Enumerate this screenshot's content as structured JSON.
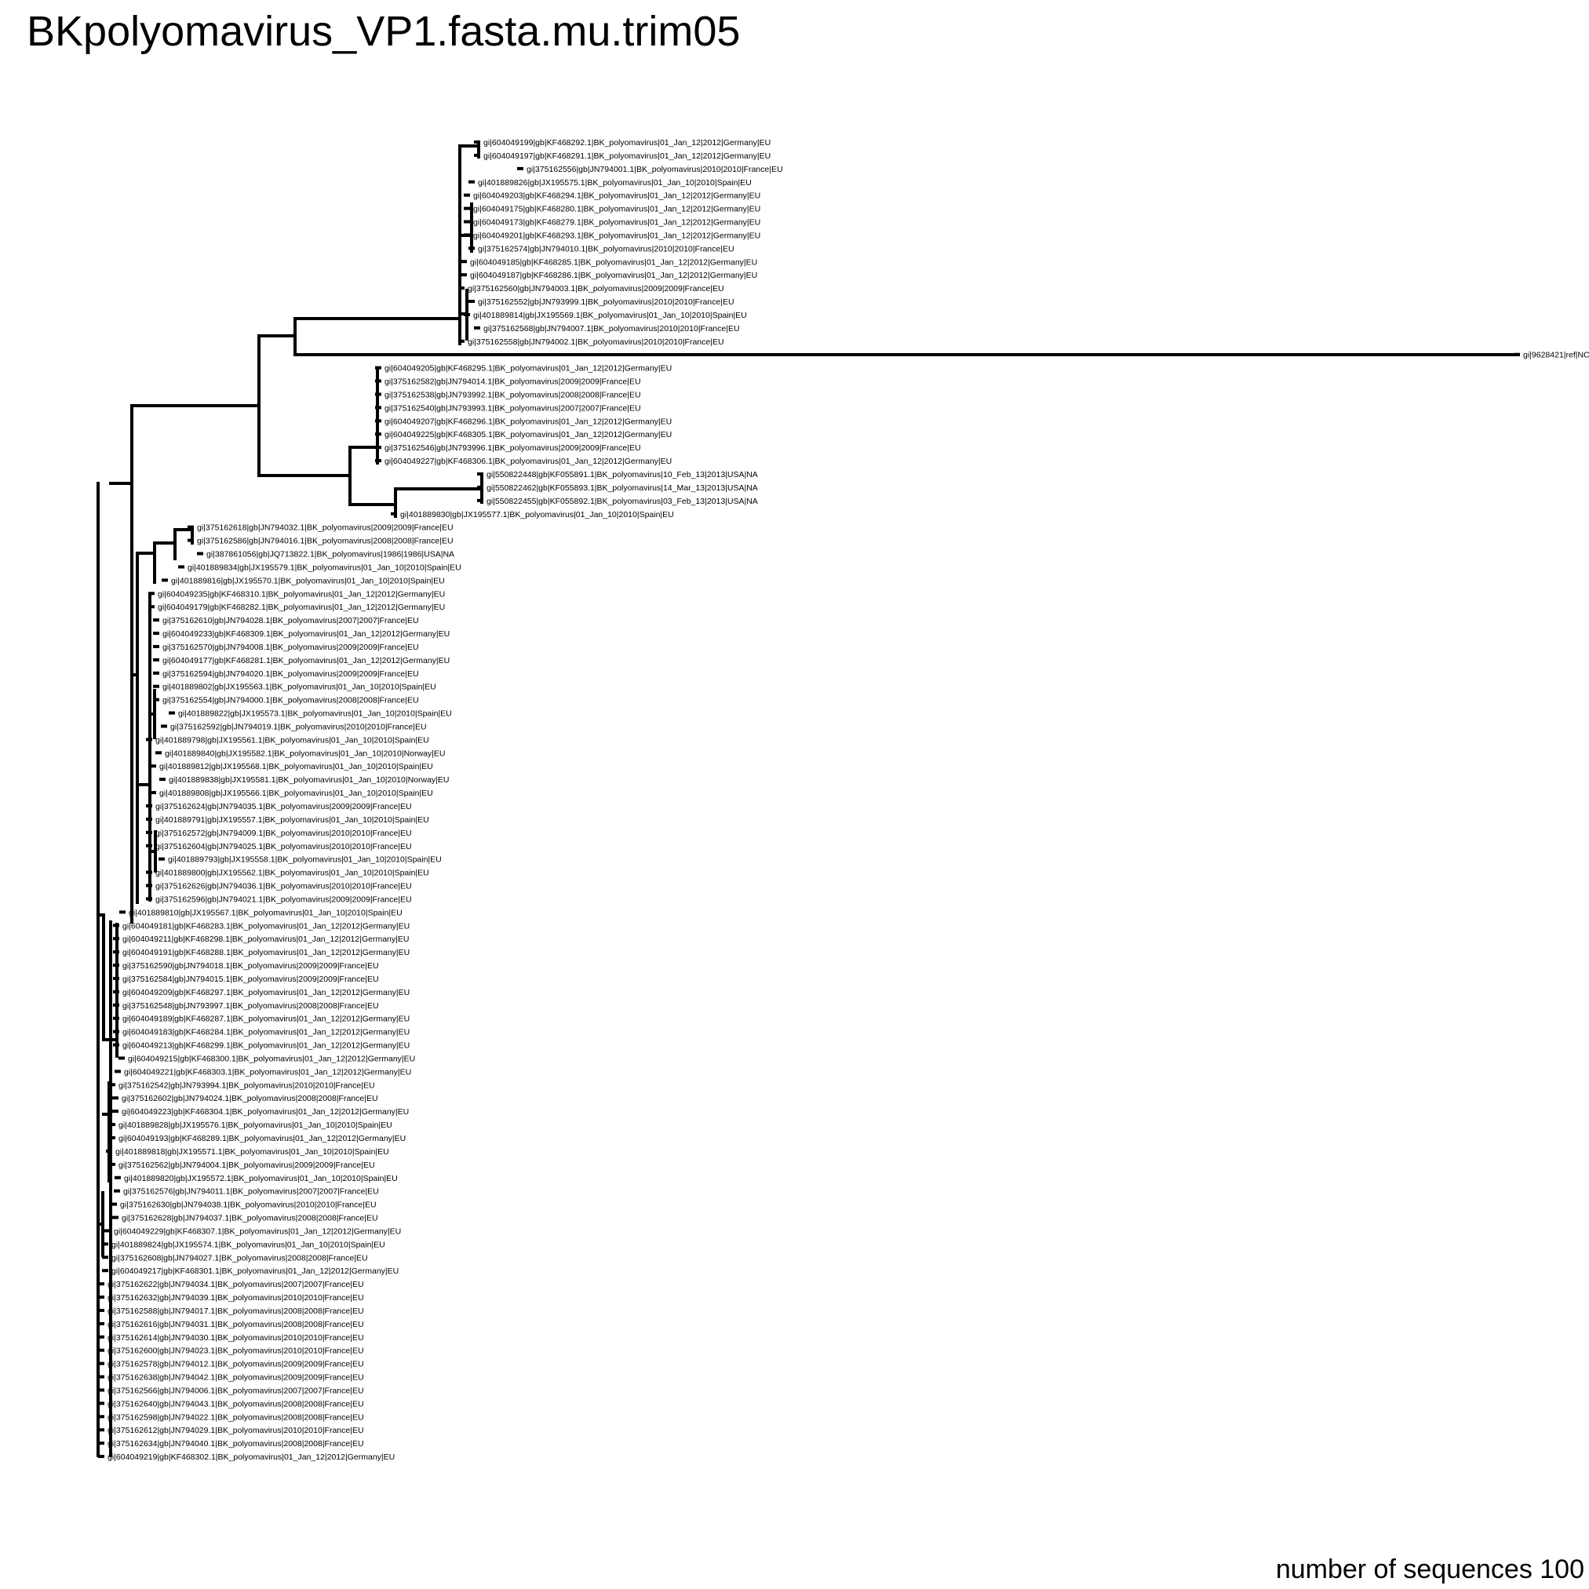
{
  "title": "BKpolyomavirus_VP1.fasta.mu.trim05",
  "footer": "number of sequences 100",
  "tips": [
    "gi|604049199|gb|KF468292.1|BK_polyomavirus|01_Jan_12|2012|Germany|EU",
    "gi|604049197|gb|KF468291.1|BK_polyomavirus|01_Jan_12|2012|Germany|EU",
    "gi|375162556|gb|JN794001.1|BK_polyomavirus|2010|2010|France|EU",
    "gi|401889826|gb|JX195575.1|BK_polyomavirus|01_Jan_10|2010|Spain|EU",
    "gi|604049203|gb|KF468294.1|BK_polyomavirus|01_Jan_12|2012|Germany|EU",
    "gi|604049175|gb|KF468280.1|BK_polyomavirus|01_Jan_12|2012|Germany|EU",
    "gi|604049173|gb|KF468279.1|BK_polyomavirus|01_Jan_12|2012|Germany|EU",
    "gi|604049201|gb|KF468293.1|BK_polyomavirus|01_Jan_12|2012|Germany|EU",
    "gi|375162574|gb|JN794010.1|BK_polyomavirus|2010|2010|France|EU",
    "gi|604049185|gb|KF468285.1|BK_polyomavirus|01_Jan_12|2012|Germany|EU",
    "gi|604049187|gb|KF468286.1|BK_polyomavirus|01_Jan_12|2012|Germany|EU",
    "gi|375162560|gb|JN794003.1|BK_polyomavirus|2009|2009|France|EU",
    "gi|375162552|gb|JN793999.1|BK_polyomavirus|2010|2010|France|EU",
    "gi|401889814|gb|JX195569.1|BK_polyomavirus|01_Jan_10|2010|Spain|EU",
    "gi|375162568|gb|JN794007.1|BK_polyomavirus|2010|2010|France|EU",
    "gi|375162558|gb|JN794002.1|BK_polyomavirus|2010|2010|France|EU",
    "gi|9628421|ref|NC",
    "gi|604049205|gb|KF468295.1|BK_polyomavirus|01_Jan_12|2012|Germany|EU",
    "gi|375162582|gb|JN794014.1|BK_polyomavirus|2009|2009|France|EU",
    "gi|375162538|gb|JN793992.1|BK_polyomavirus|2008|2008|France|EU",
    "gi|375162540|gb|JN793993.1|BK_polyomavirus|2007|2007|France|EU",
    "gi|604049207|gb|KF468296.1|BK_polyomavirus|01_Jan_12|2012|Germany|EU",
    "gi|604049225|gb|KF468305.1|BK_polyomavirus|01_Jan_12|2012|Germany|EU",
    "gi|375162546|gb|JN793996.1|BK_polyomavirus|2009|2009|France|EU",
    "gi|604049227|gb|KF468306.1|BK_polyomavirus|01_Jan_12|2012|Germany|EU",
    "gi|550822448|gb|KF055891.1|BK_polyomavirus|10_Feb_13|2013|USA|NA",
    "gi|550822462|gb|KF055893.1|BK_polyomavirus|14_Mar_13|2013|USA|NA",
    "gi|550822455|gb|KF055892.1|BK_polyomavirus|03_Feb_13|2013|USA|NA",
    "gi|401889830|gb|JX195577.1|BK_polyomavirus|01_Jan_10|2010|Spain|EU",
    "gi|375162618|gb|JN794032.1|BK_polyomavirus|2009|2009|France|EU",
    "gi|375162586|gb|JN794016.1|BK_polyomavirus|2008|2008|France|EU",
    "gi|387861056|gb|JQ713822.1|BK_polyomavirus|1986|1986|USA|NA",
    "gi|401889834|gb|JX195579.1|BK_polyomavirus|01_Jan_10|2010|Spain|EU",
    "gi|401889816|gb|JX195570.1|BK_polyomavirus|01_Jan_10|2010|Spain|EU",
    "gi|604049235|gb|KF468310.1|BK_polyomavirus|01_Jan_12|2012|Germany|EU",
    "gi|604049179|gb|KF468282.1|BK_polyomavirus|01_Jan_12|2012|Germany|EU",
    "gi|375162610|gb|JN794028.1|BK_polyomavirus|2007|2007|France|EU",
    "gi|604049233|gb|KF468309.1|BK_polyomavirus|01_Jan_12|2012|Germany|EU",
    "gi|375162570|gb|JN794008.1|BK_polyomavirus|2009|2009|France|EU",
    "gi|604049177|gb|KF468281.1|BK_polyomavirus|01_Jan_12|2012|Germany|EU",
    "gi|375162594|gb|JN794020.1|BK_polyomavirus|2009|2009|France|EU",
    "gi|401889802|gb|JX195563.1|BK_polyomavirus|01_Jan_10|2010|Spain|EU",
    "gi|375162554|gb|JN794000.1|BK_polyomavirus|2008|2008|France|EU",
    "gi|401889822|gb|JX195573.1|BK_polyomavirus|01_Jan_10|2010|Spain|EU",
    "gi|375162592|gb|JN794019.1|BK_polyomavirus|2010|2010|France|EU",
    "gi|401889798|gb|JX195561.1|BK_polyomavirus|01_Jan_10|2010|Spain|EU",
    "gi|401889840|gb|JX195582.1|BK_polyomavirus|01_Jan_10|2010|Norway|EU",
    "gi|401889812|gb|JX195568.1|BK_polyomavirus|01_Jan_10|2010|Spain|EU",
    "gi|401889838|gb|JX195581.1|BK_polyomavirus|01_Jan_10|2010|Norway|EU",
    "gi|401889808|gb|JX195566.1|BK_polyomavirus|01_Jan_10|2010|Spain|EU",
    "gi|375162624|gb|JN794035.1|BK_polyomavirus|2009|2009|France|EU",
    "gi|401889791|gb|JX195557.1|BK_polyomavirus|01_Jan_10|2010|Spain|EU",
    "gi|375162572|gb|JN794009.1|BK_polyomavirus|2010|2010|France|EU",
    "gi|375162604|gb|JN794025.1|BK_polyomavirus|2010|2010|France|EU",
    "gi|401889793|gb|JX195558.1|BK_polyomavirus|01_Jan_10|2010|Spain|EU",
    "gi|401889800|gb|JX195562.1|BK_polyomavirus|01_Jan_10|2010|Spain|EU",
    "gi|375162626|gb|JN794036.1|BK_polyomavirus|2010|2010|France|EU",
    "gi|375162596|gb|JN794021.1|BK_polyomavirus|2009|2009|France|EU",
    "gi|401889810|gb|JX195567.1|BK_polyomavirus|01_Jan_10|2010|Spain|EU",
    "gi|604049181|gb|KF468283.1|BK_polyomavirus|01_Jan_12|2012|Germany|EU",
    "gi|604049211|gb|KF468298.1|BK_polyomavirus|01_Jan_12|2012|Germany|EU",
    "gi|604049191|gb|KF468288.1|BK_polyomavirus|01_Jan_12|2012|Germany|EU",
    "gi|375162590|gb|JN794018.1|BK_polyomavirus|2009|2009|France|EU",
    "gi|375162584|gb|JN794015.1|BK_polyomavirus|2009|2009|France|EU",
    "gi|604049209|gb|KF468297.1|BK_polyomavirus|01_Jan_12|2012|Germany|EU",
    "gi|375162548|gb|JN793997.1|BK_polyomavirus|2008|2008|France|EU",
    "gi|604049189|gb|KF468287.1|BK_polyomavirus|01_Jan_12|2012|Germany|EU",
    "gi|604049183|gb|KF468284.1|BK_polyomavirus|01_Jan_12|2012|Germany|EU",
    "gi|604049213|gb|KF468299.1|BK_polyomavirus|01_Jan_12|2012|Germany|EU",
    "gi|604049215|gb|KF468300.1|BK_polyomavirus|01_Jan_12|2012|Germany|EU",
    "gi|604049221|gb|KF468303.1|BK_polyomavirus|01_Jan_12|2012|Germany|EU",
    "gi|375162542|gb|JN793994.1|BK_polyomavirus|2010|2010|France|EU",
    "gi|375162602|gb|JN794024.1|BK_polyomavirus|2008|2008|France|EU",
    "gi|604049223|gb|KF468304.1|BK_polyomavirus|01_Jan_12|2012|Germany|EU",
    "gi|401889828|gb|JX195576.1|BK_polyomavirus|01_Jan_10|2010|Spain|EU",
    "gi|604049193|gb|KF468289.1|BK_polyomavirus|01_Jan_12|2012|Germany|EU",
    "gi|401889818|gb|JX195571.1|BK_polyomavirus|01_Jan_10|2010|Spain|EU",
    "gi|375162562|gb|JN794004.1|BK_polyomavirus|2009|2009|France|EU",
    "gi|401889820|gb|JX195572.1|BK_polyomavirus|01_Jan_10|2010|Spain|EU",
    "gi|375162576|gb|JN794011.1|BK_polyomavirus|2007|2007|France|EU",
    "gi|375162630|gb|JN794038.1|BK_polyomavirus|2010|2010|France|EU",
    "gi|375162628|gb|JN794037.1|BK_polyomavirus|2008|2008|France|EU",
    "gi|604049229|gb|KF468307.1|BK_polyomavirus|01_Jan_12|2012|Germany|EU",
    "gi|401889824|gb|JX195574.1|BK_polyomavirus|01_Jan_10|2010|Spain|EU",
    "gi|375162608|gb|JN794027.1|BK_polyomavirus|2008|2008|France|EU",
    "gi|604049217|gb|KF468301.1|BK_polyomavirus|01_Jan_12|2012|Germany|EU",
    "gi|375162622|gb|JN794034.1|BK_polyomavirus|2007|2007|France|EU",
    "gi|375162632|gb|JN794039.1|BK_polyomavirus|2010|2010|France|EU",
    "gi|375162588|gb|JN794017.1|BK_polyomavirus|2008|2008|France|EU",
    "gi|375162616|gb|JN794031.1|BK_polyomavirus|2008|2008|France|EU",
    "gi|375162614|gb|JN794030.1|BK_polyomavirus|2010|2010|France|EU",
    "gi|375162600|gb|JN794023.1|BK_polyomavirus|2010|2010|France|EU",
    "gi|375162578|gb|JN794012.1|BK_polyomavirus|2009|2009|France|EU",
    "gi|375162638|gb|JN794042.1|BK_polyomavirus|2009|2009|France|EU",
    "gi|375162566|gb|JN794006.1|BK_polyomavirus|2007|2007|France|EU",
    "gi|375162640|gb|JN794043.1|BK_polyomavirus|2008|2008|France|EU",
    "gi|375162598|gb|JN794022.1|BK_polyomavirus|2008|2008|France|EU",
    "gi|375162612|gb|JN794029.1|BK_polyomavirus|2010|2010|France|EU",
    "gi|375162634|gb|JN794040.1|BK_polyomavirus|2008|2008|France|EU",
    "gi|604049219|gb|KF468302.1|BK_polyomavirus|01_Jan_12|2012|Germany|EU"
  ]
}
